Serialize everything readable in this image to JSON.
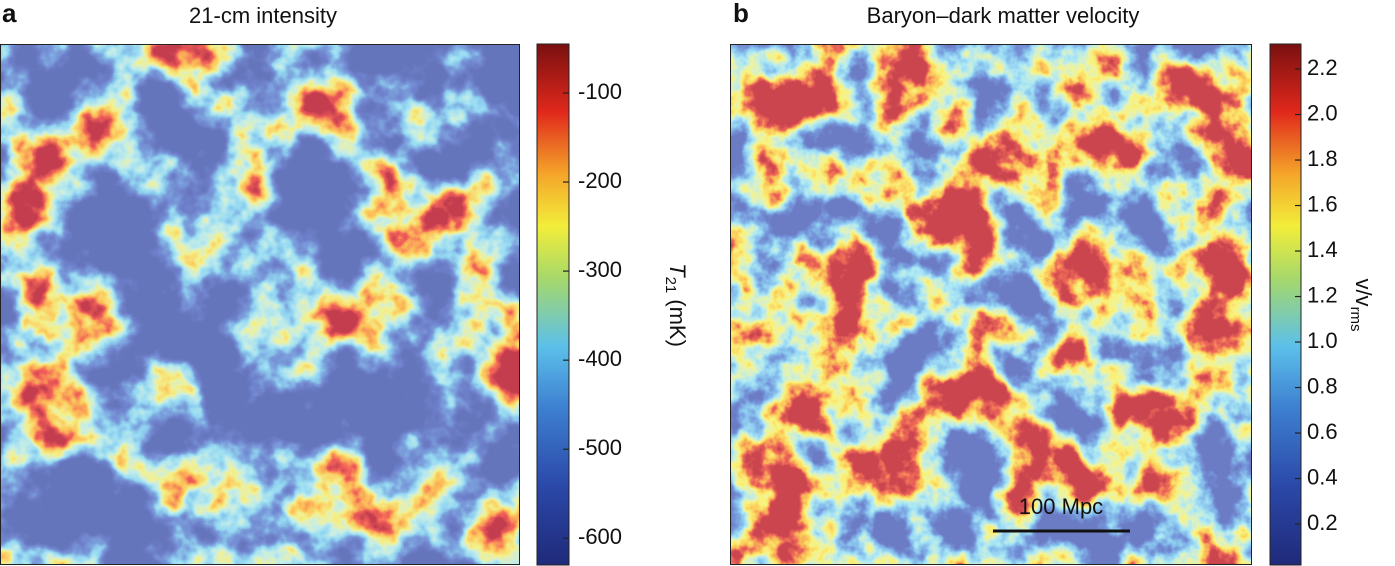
{
  "chart_data": [
    {
      "type": "heatmap",
      "panel": "a",
      "title": "21-cm intensity",
      "colorbar": {
        "label": {
          "symbol": "T",
          "subscript": "21",
          "unit": "(mK)"
        },
        "ylim": [
          -630,
          -45
        ],
        "yticks": [
          -600,
          -500,
          -400,
          -300,
          -200,
          -100
        ]
      }
    },
    {
      "type": "heatmap",
      "panel": "b",
      "title": "Baryon–dark matter velocity",
      "colorbar": {
        "label": {
          "symbol": "v/v",
          "subscript": "rms"
        },
        "ylim": [
          0.02,
          2.31
        ],
        "yticks": [
          0.2,
          0.4,
          0.6,
          0.8,
          {
            "value": 1,
            "label": "1.0"
          },
          1.2,
          1.4,
          1.6,
          1.8,
          {
            "value": 2,
            "label": "2.0"
          },
          2.2
        ]
      },
      "scale_bar": {
        "label": "100 Mpc"
      }
    }
  ]
}
